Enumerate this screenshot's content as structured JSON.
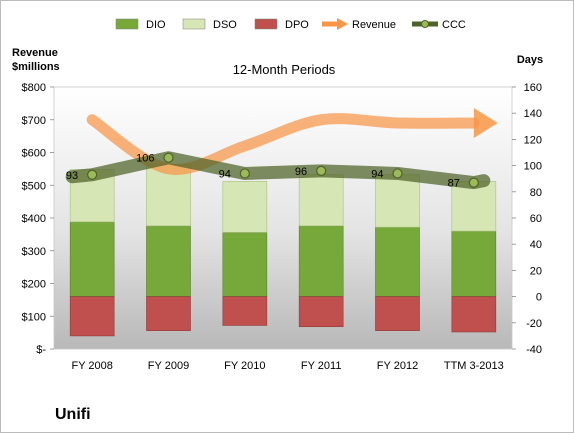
{
  "legend": [
    {
      "label": "DIO",
      "color": "#76a93a",
      "kind": "bar"
    },
    {
      "label": "DSO",
      "color": "#d6e6b4",
      "kind": "bar"
    },
    {
      "label": "DPO",
      "color": "#c0504d",
      "kind": "bar"
    },
    {
      "label": "Revenue",
      "color": "#f79646",
      "kind": "arrow"
    },
    {
      "label": "CCC",
      "color": "#4f6228",
      "kind": "line-marker"
    }
  ],
  "company": "Unifi",
  "chart_data": {
    "type": "bar",
    "title": "12-Month Periods",
    "categories": [
      "FY 2008",
      "FY 2009",
      "FY 2010",
      "FY 2011",
      "FY 2012",
      "TTM 3-2013"
    ],
    "left_axis": {
      "label": "Revenue $millions",
      "label_lines": [
        "Revenue",
        "$millions"
      ],
      "range": [
        0,
        800
      ],
      "ticks": [
        {
          "value": 0,
          "label": "$-"
        },
        {
          "value": 100,
          "label": "$100"
        },
        {
          "value": 200,
          "label": "$200"
        },
        {
          "value": 300,
          "label": "$300"
        },
        {
          "value": 400,
          "label": "$400"
        },
        {
          "value": 500,
          "label": "$500"
        },
        {
          "value": 600,
          "label": "$600"
        },
        {
          "value": 700,
          "label": "$700"
        },
        {
          "value": 800,
          "label": "$800"
        }
      ]
    },
    "right_axis": {
      "label": "Days",
      "range": [
        -40,
        160
      ],
      "ticks": [
        -40,
        -20,
        0,
        20,
        40,
        60,
        80,
        100,
        120,
        140,
        160
      ]
    },
    "series": [
      {
        "name": "DIO",
        "axis": "right",
        "type": "stacked-bar",
        "color": "#76a93a",
        "values": [
          57,
          54,
          49,
          54,
          53,
          50
        ]
      },
      {
        "name": "DSO",
        "axis": "right",
        "type": "stacked-bar",
        "color": "#d6e6b4",
        "values": [
          40,
          47,
          39,
          39,
          40,
          38
        ]
      },
      {
        "name": "DPO",
        "axis": "right",
        "type": "negative-bar",
        "color": "#c0504d",
        "values": [
          -30,
          -26,
          -22,
          -23,
          -26,
          -27
        ]
      },
      {
        "name": "CCC",
        "axis": "right",
        "type": "line",
        "color": "#4f6228",
        "values": [
          93,
          106,
          94,
          96,
          94,
          87
        ],
        "labels": [
          "93",
          "106",
          "94",
          "96",
          "94",
          "87"
        ]
      },
      {
        "name": "Revenue",
        "axis": "left",
        "type": "arrow-line",
        "color": "#f79646",
        "values": [
          700,
          550,
          620,
          700,
          690,
          690
        ]
      }
    ],
    "grid": false,
    "legend_position": "top"
  }
}
